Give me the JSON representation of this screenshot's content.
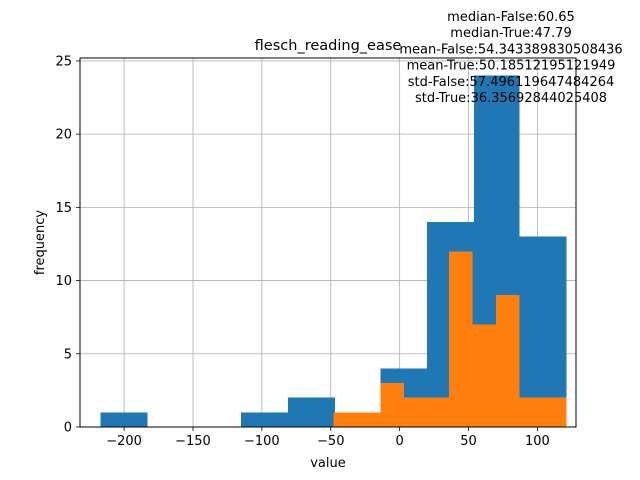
{
  "chart_data": {
    "type": "histogram",
    "title": "flesch_reading_ease",
    "xlabel": "value",
    "ylabel": "frequency",
    "xlim": [
      -232,
      128
    ],
    "ylim": [
      0,
      25.2
    ],
    "grid": true,
    "xticks": [
      -200,
      -150,
      -100,
      -50,
      0,
      50,
      100
    ],
    "yticks": [
      0,
      5,
      10,
      15,
      20,
      25
    ],
    "annotation_lines": [
      "median-False:60.65",
      "median-True:47.79",
      "mean-False:54.343389830508436",
      "mean-True:50.18512195121949",
      "std-False:57.496119647484264",
      "std-True:36.35692844025408"
    ],
    "series": [
      {
        "color": "#1f77b4",
        "bins": [
          {
            "x0": -217,
            "x1": -183,
            "count": 1
          },
          {
            "x0": -183,
            "x1": -149,
            "count": 0
          },
          {
            "x0": -149,
            "x1": -115,
            "count": 0
          },
          {
            "x0": -115,
            "x1": -81,
            "count": 1
          },
          {
            "x0": -81,
            "x1": -47,
            "count": 2
          },
          {
            "x0": -47,
            "x1": -14,
            "count": 0
          },
          {
            "x0": -14,
            "x1": 20,
            "count": 4
          },
          {
            "x0": 20,
            "x1": 54,
            "count": 14
          },
          {
            "x0": 54,
            "x1": 87,
            "count": 24
          },
          {
            "x0": 87,
            "x1": 121,
            "count": 13
          }
        ]
      },
      {
        "color": "#ff7f0e",
        "bins": [
          {
            "x0": -48,
            "x1": -31,
            "count": 1
          },
          {
            "x0": -31,
            "x1": -14,
            "count": 1
          },
          {
            "x0": -14,
            "x1": 3,
            "count": 3
          },
          {
            "x0": 3,
            "x1": 20,
            "count": 2
          },
          {
            "x0": 20,
            "x1": 36,
            "count": 2
          },
          {
            "x0": 36,
            "x1": 53,
            "count": 12
          },
          {
            "x0": 53,
            "x1": 70,
            "count": 7
          },
          {
            "x0": 70,
            "x1": 87,
            "count": 9
          },
          {
            "x0": 87,
            "x1": 104,
            "count": 2
          },
          {
            "x0": 104,
            "x1": 121,
            "count": 2
          }
        ]
      }
    ]
  }
}
